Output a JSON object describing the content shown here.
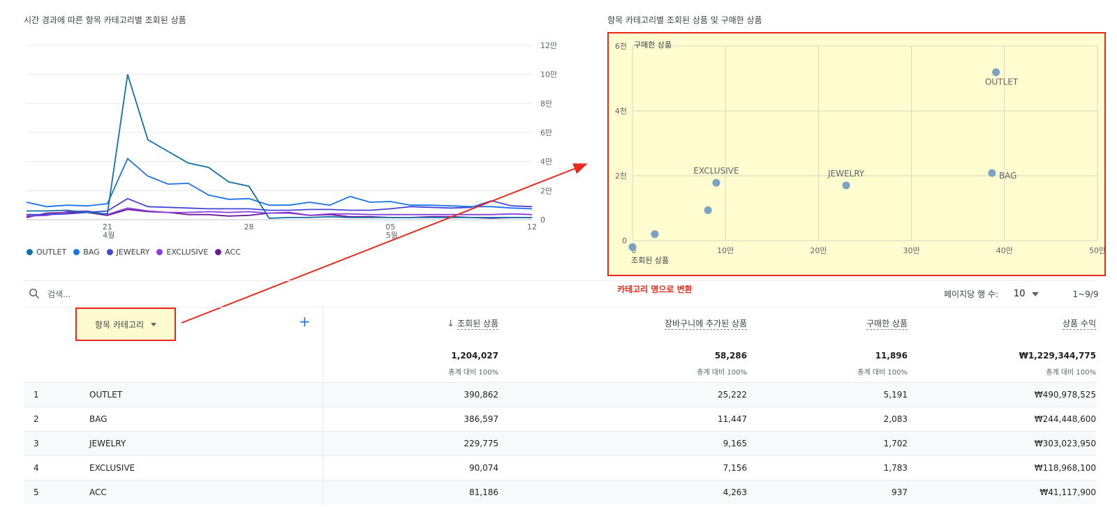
{
  "line_chart": {
    "title": "시간 경과에 따른 항목 카테고리별 조회된 상품",
    "chart_data": {
      "type": "line",
      "x": [
        "04-17",
        "04-18",
        "04-19",
        "04-20",
        "04-21",
        "04-22",
        "04-23",
        "04-24",
        "04-25",
        "04-26",
        "04-27",
        "04-28",
        "04-29",
        "04-30",
        "05-01",
        "05-02",
        "05-03",
        "05-04",
        "05-05",
        "05-06",
        "05-07",
        "05-08",
        "05-09",
        "05-10",
        "05-11",
        "05-12"
      ],
      "xticks": [
        {
          "x": "04-21",
          "label": "21",
          "sub": "4월"
        },
        {
          "x": "04-28",
          "label": "28",
          "sub": ""
        },
        {
          "x": "05-05",
          "label": "05",
          "sub": "5월"
        },
        {
          "x": "05-12",
          "label": "12",
          "sub": ""
        }
      ],
      "yticks": [
        {
          "v": 0,
          "label": "0"
        },
        {
          "v": 20000,
          "label": "2만"
        },
        {
          "v": 40000,
          "label": "4만"
        },
        {
          "v": 60000,
          "label": "6만"
        },
        {
          "v": 80000,
          "label": "8만"
        },
        {
          "v": 100000,
          "label": "10만"
        },
        {
          "v": 120000,
          "label": "12만"
        }
      ],
      "ylim": [
        0,
        120000
      ],
      "series": [
        {
          "name": "OUTLET",
          "color": "#1170aa",
          "values": [
            6000,
            6000,
            6500,
            5000,
            4000,
            100000,
            55000,
            47000,
            39000,
            36000,
            26000,
            23000,
            1000,
            1500,
            1500,
            2000,
            1500,
            1500,
            1500,
            1500,
            1500,
            1500,
            1500,
            1500,
            1500,
            1500
          ]
        },
        {
          "name": "BAG",
          "color": "#1a73e8",
          "values": [
            12000,
            9000,
            10000,
            9500,
            11000,
            42000,
            30000,
            24500,
            25000,
            17000,
            14000,
            14500,
            10000,
            10000,
            12000,
            10000,
            16000,
            12000,
            12500,
            10000,
            10000,
            9500,
            9000,
            9000,
            8000,
            7500
          ]
        },
        {
          "name": "JEWELRY",
          "color": "#4646d4",
          "values": [
            3500,
            3500,
            4000,
            5000,
            6000,
            14500,
            9000,
            8500,
            8000,
            7500,
            7500,
            7500,
            6500,
            6500,
            7000,
            7000,
            6500,
            6500,
            7500,
            9000,
            8500,
            8000,
            8500,
            13000,
            9500,
            9000
          ]
        },
        {
          "name": "EXCLUSIVE",
          "color": "#8c3ddc",
          "values": [
            2500,
            3000,
            5500,
            6000,
            3500,
            8000,
            6000,
            5000,
            5000,
            5500,
            5000,
            5500,
            4500,
            4500,
            3000,
            4000,
            4000,
            3500,
            3500,
            3500,
            3500,
            3500,
            3500,
            3500,
            4000,
            3500
          ]
        },
        {
          "name": "ACC",
          "color": "#6a1b9a",
          "values": [
            1500,
            4500,
            5000,
            5000,
            3000,
            7000,
            5500,
            5000,
            3500,
            3500,
            2500,
            3000,
            4500,
            5000,
            3000,
            3500,
            2000,
            2000,
            1500,
            1500,
            2000,
            2000,
            1500,
            1000,
            1500,
            1500
          ]
        }
      ]
    }
  },
  "scatter_chart": {
    "title": "항목 카테고리별 조회된 상품 및 구매한 상품",
    "chart_data": {
      "type": "scatter",
      "xlabel": "조회된 상품",
      "ylabel": "구매한 상품",
      "xlim": [
        0,
        500000
      ],
      "ylim": [
        0,
        6000
      ],
      "xticks": [
        {
          "v": 0,
          "label": "0"
        },
        {
          "v": 100000,
          "label": "10만"
        },
        {
          "v": 200000,
          "label": "20만"
        },
        {
          "v": 300000,
          "label": "30만"
        },
        {
          "v": 400000,
          "label": "40만"
        },
        {
          "v": 500000,
          "label": "50만"
        }
      ],
      "yticks": [
        {
          "v": 0,
          "label": "0"
        },
        {
          "v": 2000,
          "label": "2천"
        },
        {
          "v": 4000,
          "label": "4천"
        },
        {
          "v": 6000,
          "label": "6천"
        }
      ],
      "points": [
        {
          "label": "OUTLET",
          "x": 390862,
          "y": 5191,
          "label_pos": "below"
        },
        {
          "label": "BAG",
          "x": 386597,
          "y": 2083,
          "label_pos": "right"
        },
        {
          "label": "JEWELRY",
          "x": 229775,
          "y": 1702,
          "label_pos": "above"
        },
        {
          "label": "EXCLUSIVE",
          "x": 90074,
          "y": 1783,
          "label_pos": "above"
        },
        {
          "label": "",
          "x": 81186,
          "y": 937,
          "label_pos": "none"
        },
        {
          "label": "",
          "x": 24000,
          "y": 200,
          "label_pos": "none"
        },
        {
          "label": "",
          "x": 0,
          "y": -200,
          "label_pos": "none"
        }
      ],
      "point_color": "#7ba2c2",
      "background": "#fffcd0"
    }
  },
  "annotation": {
    "text": "카테고리 명으로 변환",
    "color": "#e8291c"
  },
  "search": {
    "placeholder": "검색..."
  },
  "pagination": {
    "rows_label": "페이지당 행 수:",
    "rows_value": "10",
    "range": "1~9/9"
  },
  "table": {
    "dimension_header": "항목 카테고리",
    "metrics": [
      {
        "label": "조회된 상품",
        "sorted": true,
        "total": "1,204,027",
        "pct": "총계 대비 100%"
      },
      {
        "label": "장바구니에 추가된 상품",
        "sorted": false,
        "total": "58,286",
        "pct": "총계 대비 100%"
      },
      {
        "label": "구매한 상품",
        "sorted": false,
        "total": "11,896",
        "pct": "총계 대비 100%"
      },
      {
        "label": "상품 수익",
        "sorted": false,
        "total": "₩1,229,344,775",
        "pct": "총계 대비 100%"
      }
    ],
    "rows": [
      {
        "idx": "1",
        "name": "OUTLET",
        "v1": "390,862",
        "v2": "25,222",
        "v3": "5,191",
        "v4": "₩490,978,525"
      },
      {
        "idx": "2",
        "name": "BAG",
        "v1": "386,597",
        "v2": "11,447",
        "v3": "2,083",
        "v4": "₩244,448,600"
      },
      {
        "idx": "3",
        "name": "JEWELRY",
        "v1": "229,775",
        "v2": "9,165",
        "v3": "1,702",
        "v4": "₩303,023,950"
      },
      {
        "idx": "4",
        "name": "EXCLUSIVE",
        "v1": "90,074",
        "v2": "7,156",
        "v3": "1,783",
        "v4": "₩118,968,100"
      },
      {
        "idx": "5",
        "name": "ACC",
        "v1": "81,186",
        "v2": "4,263",
        "v3": "937",
        "v4": "₩41,117,900"
      }
    ]
  }
}
